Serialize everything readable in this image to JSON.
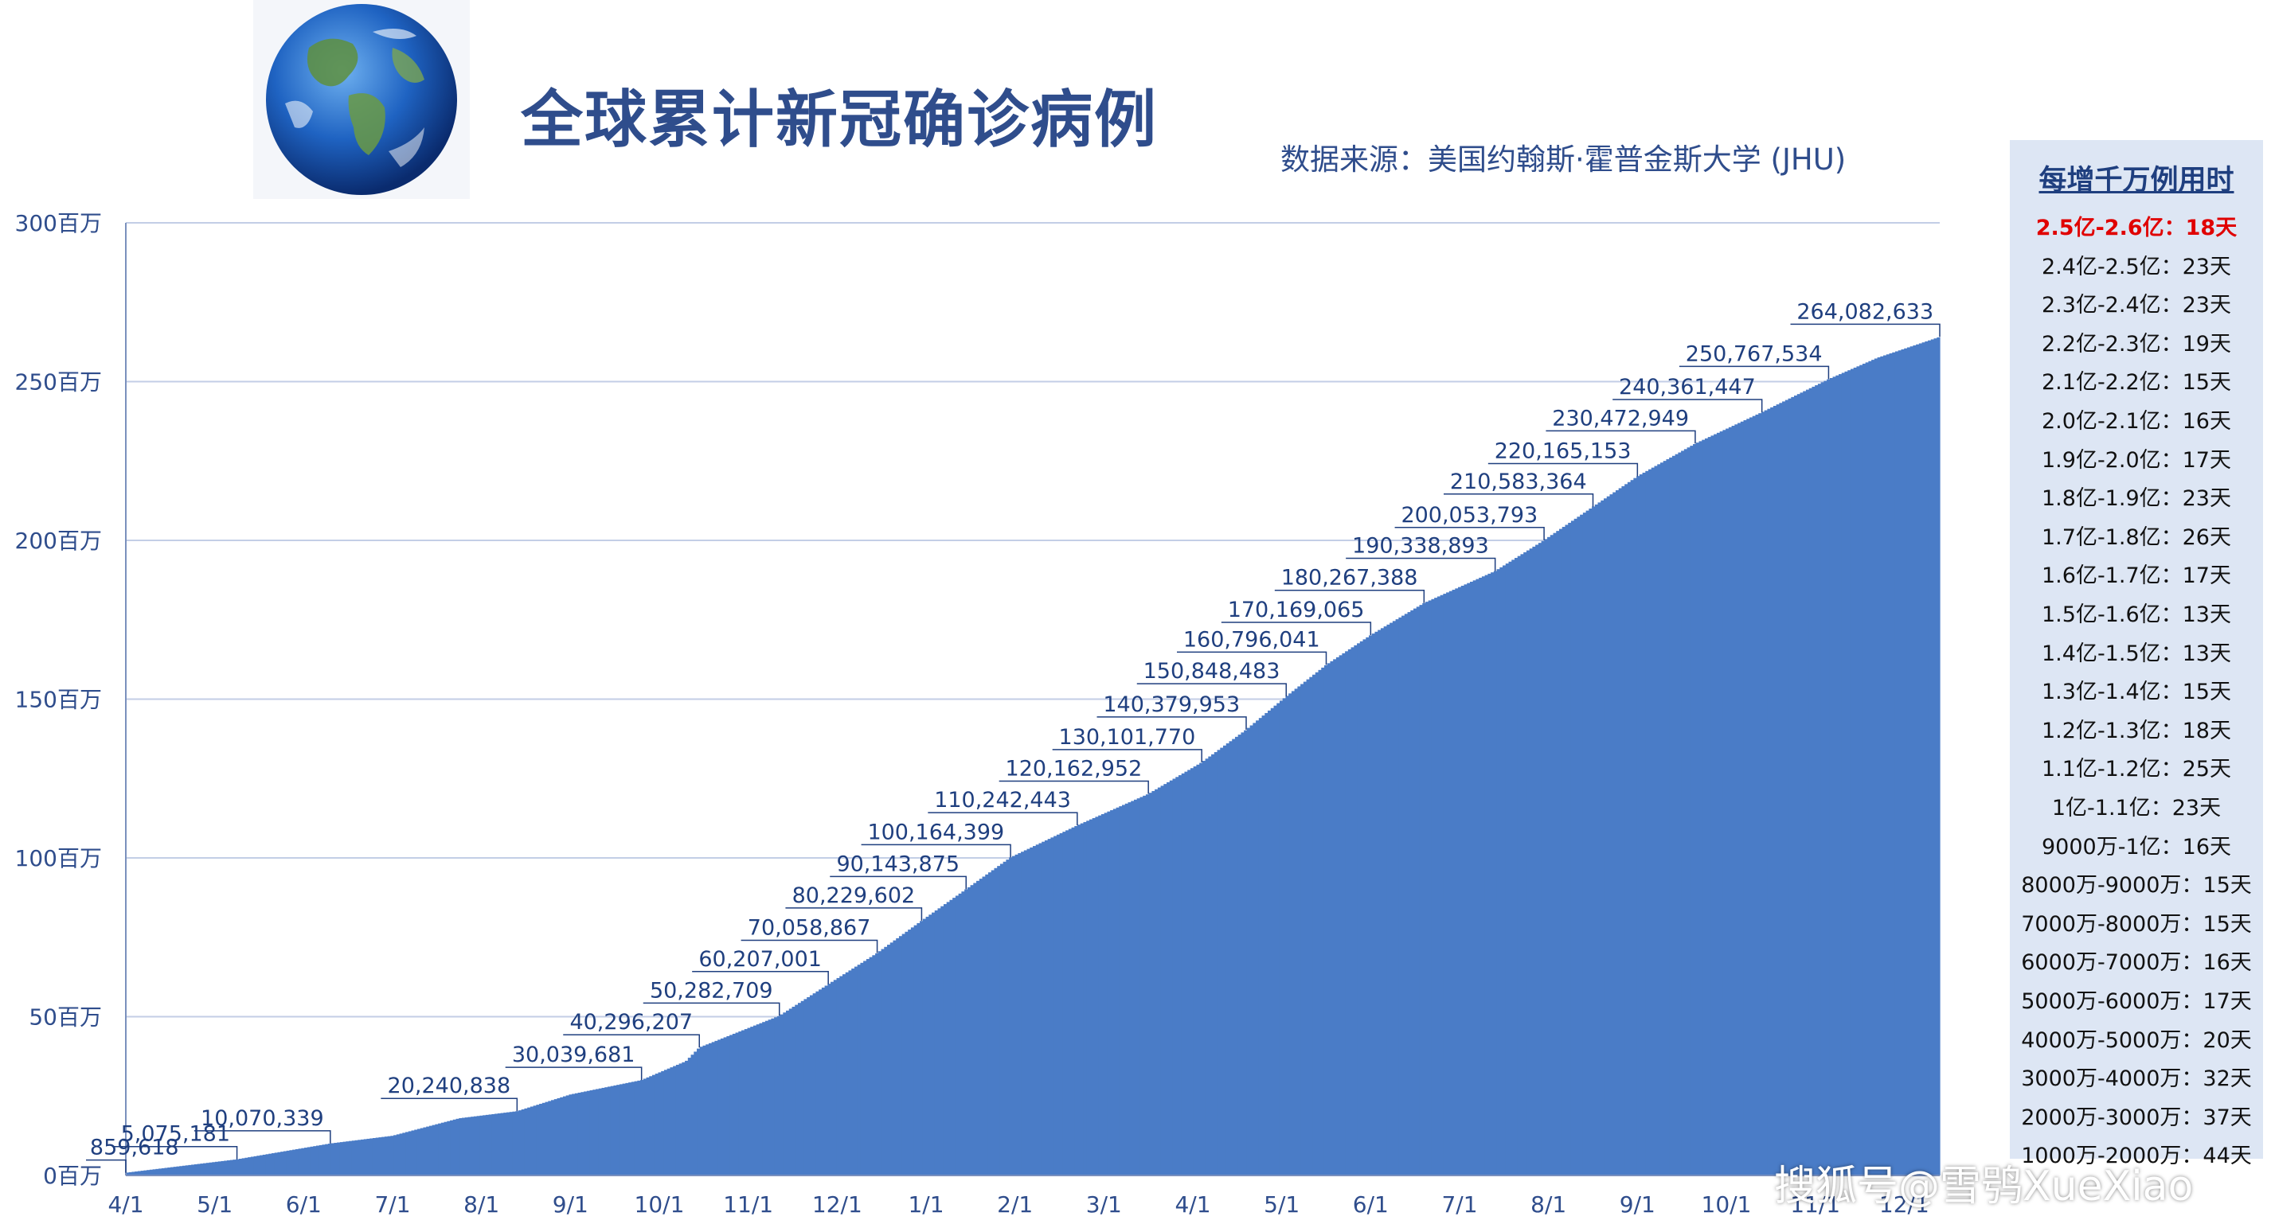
{
  "header": {
    "title": "全球累计新冠确诊病例",
    "source": "数据来源：美国约翰斯·霍普金斯大学 (JHU)"
  },
  "panel": {
    "title": "每增千万例用时",
    "rows": [
      {
        "range": "2.5亿-2.6亿：",
        "days": "18天",
        "highlight": true
      },
      {
        "range": "2.4亿-2.5亿：",
        "days": "23天",
        "highlight": false
      },
      {
        "range": "2.3亿-2.4亿：",
        "days": "23天",
        "highlight": false
      },
      {
        "range": "2.2亿-2.3亿：",
        "days": "19天",
        "highlight": false
      },
      {
        "range": "2.1亿-2.2亿：",
        "days": "15天",
        "highlight": false
      },
      {
        "range": "2.0亿-2.1亿：",
        "days": "16天",
        "highlight": false
      },
      {
        "range": "1.9亿-2.0亿：",
        "days": "17天",
        "highlight": false
      },
      {
        "range": "1.8亿-1.9亿：",
        "days": "23天",
        "highlight": false
      },
      {
        "range": "1.7亿-1.8亿：",
        "days": "26天",
        "highlight": false
      },
      {
        "range": "1.6亿-1.7亿：",
        "days": "17天",
        "highlight": false
      },
      {
        "range": "1.5亿-1.6亿：",
        "days": "13天",
        "highlight": false
      },
      {
        "range": "1.4亿-1.5亿：",
        "days": "13天",
        "highlight": false
      },
      {
        "range": "1.3亿-1.4亿：",
        "days": "15天",
        "highlight": false
      },
      {
        "range": "1.2亿-1.3亿：",
        "days": "18天",
        "highlight": false
      },
      {
        "range": "1.1亿-1.2亿：",
        "days": "25天",
        "highlight": false
      },
      {
        "range": "1亿-1.1亿：",
        "days": "23天",
        "highlight": false
      },
      {
        "range": "9000万-1亿：",
        "days": "16天",
        "highlight": false
      },
      {
        "range": "8000万-9000万：",
        "days": "15天",
        "highlight": false
      },
      {
        "range": "7000万-8000万：",
        "days": "15天",
        "highlight": false
      },
      {
        "range": "6000万-7000万：",
        "days": "16天",
        "highlight": false
      },
      {
        "range": "5000万-6000万：",
        "days": "17天",
        "highlight": false
      },
      {
        "range": "4000万-5000万：",
        "days": "20天",
        "highlight": false
      },
      {
        "range": "3000万-4000万：",
        "days": "32天",
        "highlight": false
      },
      {
        "range": "2000万-3000万：",
        "days": "37天",
        "highlight": false
      },
      {
        "range": "1000万-2000万：",
        "days": "44天",
        "highlight": false
      }
    ]
  },
  "watermark": "搜狐号@雪鸮XueXiao",
  "chart_data": {
    "type": "area",
    "ylim": [
      0,
      300
    ],
    "y_ticks": [
      {
        "value": 0,
        "label": "0百万"
      },
      {
        "value": 50,
        "label": "50百万"
      },
      {
        "value": 100,
        "label": "100百万"
      },
      {
        "value": 150,
        "label": "150百万"
      },
      {
        "value": 200,
        "label": "200百万"
      },
      {
        "value": 250,
        "label": "250百万"
      },
      {
        "value": 300,
        "label": "300百万"
      }
    ],
    "x_ticks": [
      "4/1",
      "5/1",
      "6/1",
      "7/1",
      "8/1",
      "9/1",
      "10/1",
      "11/1",
      "12/1",
      "1/1",
      "2/1",
      "3/1",
      "4/1",
      "5/1",
      "6/1",
      "7/1",
      "8/1",
      "9/1",
      "10/1",
      "11/1",
      "12/1"
    ],
    "x_range": [
      0,
      20.4
    ],
    "grid": true,
    "bar_color": "#4a7cc7",
    "points": [
      {
        "x": 0.0,
        "y": 0.86,
        "label": "859,618"
      },
      {
        "x": 1.25,
        "y": 5.08,
        "label": "5,075,181"
      },
      {
        "x": 2.3,
        "y": 10.07,
        "label": "10,070,339"
      },
      {
        "x": 3.0,
        "y": 12.5,
        "label": ""
      },
      {
        "x": 3.75,
        "y": 18.0,
        "label": ""
      },
      {
        "x": 4.4,
        "y": 20.24,
        "label": "20,240,838"
      },
      {
        "x": 5.0,
        "y": 25.5,
        "label": ""
      },
      {
        "x": 5.8,
        "y": 30.04,
        "label": "30,039,681"
      },
      {
        "x": 6.3,
        "y": 36.0,
        "label": ""
      },
      {
        "x": 6.45,
        "y": 40.3,
        "label": "40,296,207"
      },
      {
        "x": 7.35,
        "y": 50.28,
        "label": "50,282,709"
      },
      {
        "x": 7.9,
        "y": 60.21,
        "label": "60,207,001"
      },
      {
        "x": 8.45,
        "y": 70.06,
        "label": "70,058,867"
      },
      {
        "x": 8.95,
        "y": 80.23,
        "label": "80,229,602"
      },
      {
        "x": 9.45,
        "y": 90.14,
        "label": "90,143,875"
      },
      {
        "x": 9.95,
        "y": 100.16,
        "label": "100,164,399"
      },
      {
        "x": 10.7,
        "y": 110.24,
        "label": "110,242,443"
      },
      {
        "x": 11.5,
        "y": 120.16,
        "label": "120,162,952"
      },
      {
        "x": 12.1,
        "y": 130.1,
        "label": "130,101,770"
      },
      {
        "x": 12.6,
        "y": 140.38,
        "label": "140,379,953"
      },
      {
        "x": 13.05,
        "y": 150.85,
        "label": "150,848,483"
      },
      {
        "x": 13.5,
        "y": 160.8,
        "label": "160,796,041"
      },
      {
        "x": 14.0,
        "y": 170.17,
        "label": "170,169,065"
      },
      {
        "x": 14.6,
        "y": 180.27,
        "label": "180,267,388"
      },
      {
        "x": 15.4,
        "y": 190.34,
        "label": "190,338,893"
      },
      {
        "x": 15.95,
        "y": 200.05,
        "label": "200,053,793"
      },
      {
        "x": 16.5,
        "y": 210.58,
        "label": "210,583,364"
      },
      {
        "x": 17.0,
        "y": 220.17,
        "label": "220,165,153"
      },
      {
        "x": 17.65,
        "y": 230.47,
        "label": "230,472,949"
      },
      {
        "x": 18.4,
        "y": 240.36,
        "label": "240,361,447"
      },
      {
        "x": 19.15,
        "y": 250.77,
        "label": "250,767,534"
      },
      {
        "x": 19.7,
        "y": 257.5,
        "label": ""
      },
      {
        "x": 20.4,
        "y": 264.08,
        "label": "264,082,633"
      }
    ]
  }
}
